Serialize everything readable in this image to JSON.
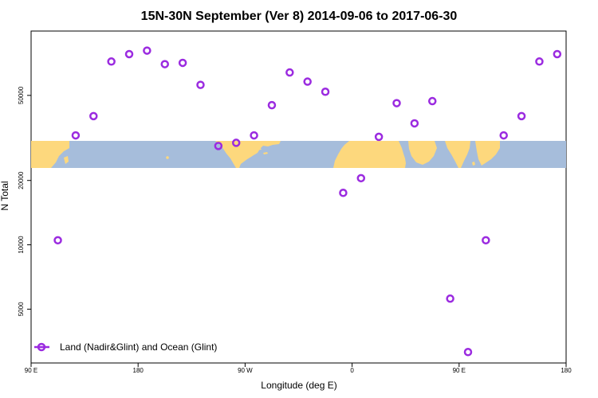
{
  "chart_data": {
    "type": "scatter",
    "title": "15N-30N September (Ver 8)   2014-09-06 to 2017-06-30",
    "xlabel": "Longitude (deg E)",
    "ylabel": "N Total",
    "x_axis_ticks": [
      {
        "value": 90,
        "label": "90 E"
      },
      {
        "value": 180,
        "label": "180"
      },
      {
        "value": 270,
        "label": "90 W"
      },
      {
        "value": 360,
        "label": "0"
      },
      {
        "value": 450,
        "label": "90 E"
      },
      {
        "value": 540,
        "label": "180"
      }
    ],
    "y_axis_ticks": [
      5000,
      10000,
      20000,
      50000
    ],
    "y_scale": "log",
    "xlim": [
      90,
      540
    ],
    "ylim": [
      2800,
      100000
    ],
    "legend": {
      "position": "bottom-left",
      "label": "Land (Nadir&Glint) and Ocean (Glint)"
    },
    "colors": {
      "series": "#9b2be0",
      "ocean": "#a6bddb",
      "land": "#fdd87d"
    },
    "series": [
      {
        "name": "Land (Nadir&Glint) and Ocean (Glint)",
        "x": [
          112.5,
          127.5,
          142.5,
          157.5,
          172.5,
          187.5,
          202.5,
          217.5,
          232.5,
          247.5,
          262.5,
          277.5,
          292.5,
          307.5,
          322.5,
          337.5,
          352.5,
          367.5,
          382.5,
          397.5,
          412.5,
          427.5,
          442.5,
          457.5,
          472.5,
          487.5,
          502.5,
          517.5,
          532.5
        ],
        "y": [
          10500,
          32500,
          40000,
          72000,
          78000,
          81000,
          70000,
          71000,
          56000,
          29000,
          30000,
          32500,
          45000,
          64000,
          58000,
          52000,
          17500,
          20500,
          32000,
          46000,
          37000,
          47000,
          5600,
          3150,
          10500,
          32500,
          40000,
          72000,
          78000
        ]
      }
    ]
  }
}
